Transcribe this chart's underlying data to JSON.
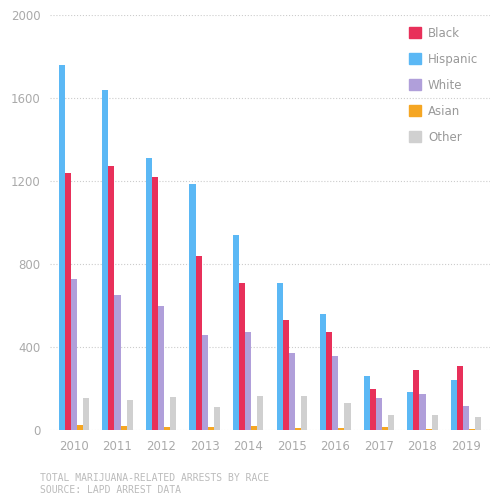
{
  "years": [
    2010,
    2011,
    2012,
    2013,
    2014,
    2015,
    2016,
    2017,
    2018,
    2019
  ],
  "black": [
    1240,
    1270,
    1220,
    840,
    710,
    530,
    470,
    200,
    290,
    310
  ],
  "hispanic": [
    1760,
    1640,
    1310,
    1185,
    940,
    710,
    560,
    260,
    185,
    240
  ],
  "white": [
    730,
    650,
    600,
    460,
    470,
    370,
    355,
    155,
    175,
    115
  ],
  "asian": [
    25,
    20,
    15,
    15,
    20,
    10,
    10,
    15,
    5,
    5
  ],
  "other": [
    155,
    145,
    160,
    110,
    165,
    165,
    130,
    70,
    70,
    65
  ],
  "colors": {
    "black": "#e8305a",
    "hispanic": "#5bb8f5",
    "white": "#b09fda",
    "asian": "#f5a623",
    "other": "#d0d0d0"
  },
  "ylim": [
    0,
    2000
  ],
  "yticks": [
    0,
    400,
    800,
    1200,
    1600,
    2000
  ],
  "title_line1": "TOTAL MARIJUANA-RELATED ARRESTS BY RACE",
  "title_line2": "SOURCE: LAPD ARREST DATA",
  "legend_labels": [
    "Black",
    "Hispanic",
    "White",
    "Asian",
    "Other"
  ],
  "bg_color": "#ffffff",
  "bar_width": 0.14
}
